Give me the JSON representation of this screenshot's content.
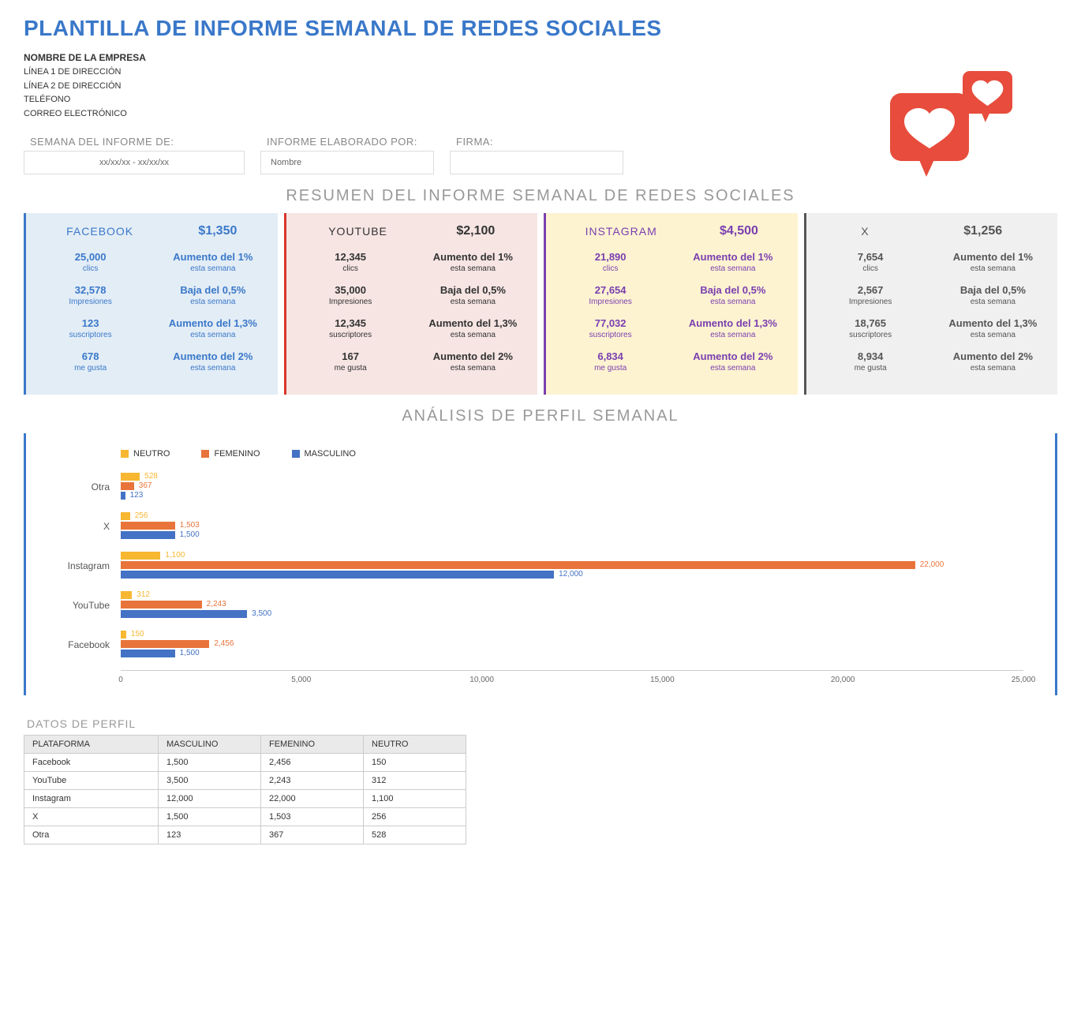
{
  "title": "PLANTILLA DE INFORME SEMANAL DE REDES SOCIALES",
  "company": {
    "name": "NOMBRE DE LA EMPRESA",
    "line1": "LÍNEA 1 DE DIRECCIÓN",
    "line2": "LÍNEA 2 DE DIRECCIÓN",
    "phone": "TELÉFONO",
    "email": "CORREO ELECTRÓNICO"
  },
  "meta": {
    "week_label": "SEMANA DEL INFORME DE:",
    "week_value": "xx/xx/xx - xx/xx/xx",
    "preparer_label": "INFORME ELABORADO POR:",
    "preparer_value": "Nombre",
    "signature_label": "FIRMA:",
    "signature_value": ""
  },
  "summary_title": "RESUMEN DEL INFORME SEMANAL DE REDES SOCIALES",
  "labels": {
    "clics": "clics",
    "impresiones": "Impresiones",
    "suscriptores": "suscriptores",
    "megusta": "me gusta",
    "esta_semana": "esta semana"
  },
  "cards": [
    {
      "platform": "FACEBOOK",
      "spend": "$1,350",
      "bg": "#e3edf6",
      "border": "#3a78c9",
      "txt": "#3a78c9",
      "rows": [
        {
          "v": "25,000",
          "s": "clics",
          "d": "Aumento del 1%"
        },
        {
          "v": "32,578",
          "s": "Impresiones",
          "d": "Baja del 0,5%"
        },
        {
          "v": "123",
          "s": "suscriptores",
          "d": "Aumento del 1,3%"
        },
        {
          "v": "678",
          "s": "me gusta",
          "d": "Aumento del 2%"
        }
      ]
    },
    {
      "platform": "YOUTUBE",
      "spend": "$2,100",
      "bg": "#f6e5e3",
      "border": "#d9362a",
      "txt": "#333333",
      "rows": [
        {
          "v": "12,345",
          "s": "clics",
          "d": "Aumento del 1%"
        },
        {
          "v": "35,000",
          "s": "Impresiones",
          "d": "Baja del 0,5%"
        },
        {
          "v": "12,345",
          "s": "suscriptores",
          "d": "Aumento del 1,3%"
        },
        {
          "v": "167",
          "s": "me gusta",
          "d": "Aumento del 2%"
        }
      ]
    },
    {
      "platform": "INSTAGRAM",
      "spend": "$4,500",
      "bg": "#fdf3d1",
      "border": "#7a3fb0",
      "txt": "#7a3fb0",
      "rows": [
        {
          "v": "21,890",
          "s": "clics",
          "d": "Aumento del 1%"
        },
        {
          "v": "27,654",
          "s": "Impresiones",
          "d": "Baja del 0,5%"
        },
        {
          "v": "77,032",
          "s": "suscriptores",
          "d": "Aumento del 1,3%"
        },
        {
          "v": "6,834",
          "s": "me gusta",
          "d": "Aumento del 2%"
        }
      ]
    },
    {
      "platform": "X",
      "spend": "$1,256",
      "bg": "#f0f0f0",
      "border": "#555555",
      "txt": "#555555",
      "rows": [
        {
          "v": "7,654",
          "s": "clics",
          "d": "Aumento del 1%"
        },
        {
          "v": "2,567",
          "s": "Impresiones",
          "d": "Baja del 0,5%"
        },
        {
          "v": "18,765",
          "s": "suscriptores",
          "d": "Aumento del 1,3%"
        },
        {
          "v": "8,934",
          "s": "me gusta",
          "d": "Aumento del 2%"
        }
      ]
    }
  ],
  "analysis_title": "ANÁLISIS DE PERFIL SEMANAL",
  "chart": {
    "legend": [
      {
        "label": "NEUTRO",
        "color": "#f7b731"
      },
      {
        "label": "FEMENINO",
        "color": "#e8743b"
      },
      {
        "label": "MASCULINO",
        "color": "#4472c4"
      }
    ],
    "xmax": 25000,
    "xticks": [
      0,
      5000,
      10000,
      15000,
      20000,
      25000
    ],
    "xtick_labels": [
      "0",
      "5,000",
      "10,000",
      "15,000",
      "20,000",
      "25,000"
    ],
    "categories": [
      {
        "name": "Otra",
        "neutro": 528,
        "neutro_l": "528",
        "fem": 367,
        "fem_l": "367",
        "masc": 123,
        "masc_l": "123"
      },
      {
        "name": "X",
        "neutro": 256,
        "neutro_l": "256",
        "fem": 1503,
        "fem_l": "1,503",
        "masc": 1500,
        "masc_l": "1,500"
      },
      {
        "name": "Instagram",
        "neutro": 1100,
        "neutro_l": "1,100",
        "fem": 22000,
        "fem_l": "22,000",
        "masc": 12000,
        "masc_l": "12,000"
      },
      {
        "name": "YouTube",
        "neutro": 312,
        "neutro_l": "312",
        "fem": 2243,
        "fem_l": "2,243",
        "masc": 3500,
        "masc_l": "3,500"
      },
      {
        "name": "Facebook",
        "neutro": 150,
        "neutro_l": "150",
        "fem": 2456,
        "fem_l": "2,456",
        "masc": 1500,
        "masc_l": "1,500"
      }
    ]
  },
  "profile_table": {
    "title": "DATOS DE PERFIL",
    "headers": [
      "PLATAFORMA",
      "MASCULINO",
      "FEMENINO",
      "NEUTRO"
    ],
    "rows": [
      [
        "Facebook",
        "1,500",
        "2,456",
        "150"
      ],
      [
        "YouTube",
        "3,500",
        "2,243",
        "312"
      ],
      [
        "Instagram",
        "12,000",
        "22,000",
        "1,100"
      ],
      [
        "X",
        "1,500",
        "1,503",
        "256"
      ],
      [
        "Otra",
        "123",
        "367",
        "528"
      ]
    ]
  },
  "colors": {
    "heart_icon": "#e74c3c",
    "heart_fill": "#ffffff"
  }
}
